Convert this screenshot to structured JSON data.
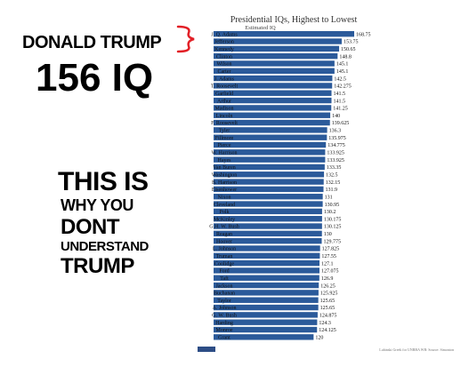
{
  "meme": {
    "claim_name": "DONALD TRUMP",
    "claim_iq": "156 IQ",
    "message_lines": [
      "THIS IS",
      "WHY YOU",
      "DONT",
      "UNDERSTAND",
      "TRUMP"
    ],
    "text_color": "#000000",
    "bracket_color": "#e21f26"
  },
  "chart_data": {
    "type": "bar",
    "orientation": "horizontal",
    "title": "Presidential IQs, Highest to Lowest",
    "subtitle": "Estimated IQ",
    "bar_color": "#2b5a9a",
    "categories": [
      "J. Q. Adams",
      "Jefferson",
      "Kennedy",
      "Clinton",
      "Wilson",
      "Carter",
      "J. Adams",
      "T. Roosevelt",
      "Garfield",
      "Arthur",
      "Madison",
      "Lincoln",
      "F. Roosevelt",
      "Tyler",
      "Fillmore",
      "Pierce",
      "W. Harrison",
      "Hayes",
      "Van Buren",
      "Washington",
      "B. Harrison",
      "Eisenhower",
      "Nixon",
      "Cleveland",
      "Polk",
      "McKinley",
      "G.H. W. Bush",
      "Reagan",
      "Hoover",
      "L. Johnson",
      "Truman",
      "Coolidge",
      "Ford",
      "Taft",
      "Jackson",
      "Buchanan",
      "Taylor",
      "A. Johnson",
      "G. W. Bush",
      "Harding",
      "Monroe",
      "Grant"
    ],
    "values": [
      168.75,
      153.75,
      150.65,
      148.8,
      145.1,
      145.1,
      142.5,
      142.275,
      141.5,
      141.5,
      141.25,
      140,
      139.625,
      136.3,
      135.975,
      134.775,
      133.925,
      133.925,
      133.35,
      132.5,
      132.15,
      131.9,
      131,
      130.95,
      130.2,
      130.175,
      130.125,
      130,
      129.775,
      127.825,
      127.55,
      127.1,
      127.075,
      126.9,
      126.25,
      125.925,
      125.65,
      125.65,
      124.875,
      124.3,
      124.125,
      120
    ],
    "value_labels": [
      "168.75",
      "153.75",
      "150.65",
      "148.8",
      "145.1",
      "145.1",
      "142.5",
      "142.275",
      "141.5",
      "141.5",
      "141.25",
      "140",
      "139.625",
      "136.3",
      "135.975",
      "134.775",
      "133.925",
      "133.925",
      "133.35",
      "132.5",
      "132.15",
      "131.9",
      "131",
      "130.95",
      "130.2",
      "130.175",
      "130.125",
      "130",
      "129.775",
      "127.825",
      "127.55",
      "127.1",
      "127.075",
      "126.9",
      "126.25",
      "125.925",
      "125.65",
      "125.65",
      "124.875",
      "124.3",
      "124.125",
      "120"
    ],
    "xlim": [
      0,
      168.75
    ],
    "grid": false,
    "legend": "none",
    "source_note": "Lubinski Greek for UNRBA WB: Source: Simonton"
  }
}
